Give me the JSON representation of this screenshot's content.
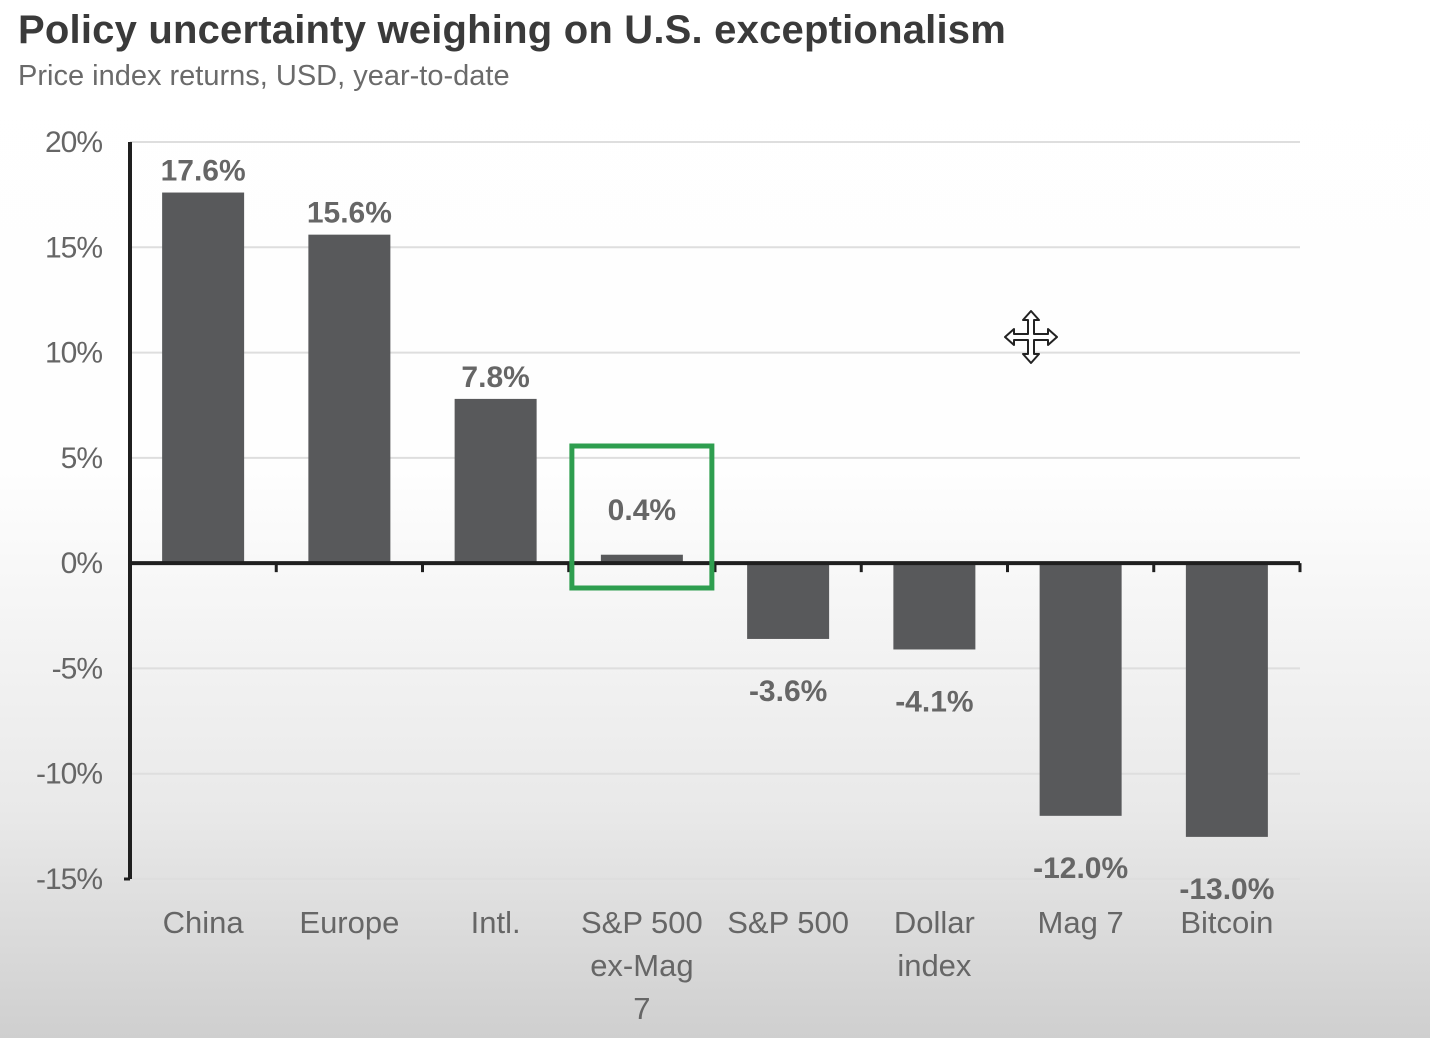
{
  "title": "Policy uncertainty weighing on U.S. exceptionalism",
  "subtitle": "Price index returns, USD, year-to-date",
  "cursor_icon": "move-cursor-icon",
  "colors": {
    "bar": "#58595b",
    "highlight_box": "#2e9e4f",
    "grid": "#dedede",
    "axis": "#1f1f1f",
    "label": "#666666"
  },
  "chart_data": {
    "type": "bar",
    "title": "Policy uncertainty weighing on U.S. exceptionalism",
    "subtitle": "Price index returns, USD, year-to-date",
    "xlabel": "",
    "ylabel": "",
    "ylim": [
      -15,
      20
    ],
    "yticks": [
      20,
      15,
      10,
      5,
      0,
      -5,
      -10,
      -15
    ],
    "ytick_labels": [
      "20%",
      "15%",
      "10%",
      "5%",
      "0%",
      "-5%",
      "-10%",
      "-15%"
    ],
    "grid": true,
    "legend": "none",
    "categories": [
      [
        "China"
      ],
      [
        "Europe"
      ],
      [
        "Intl."
      ],
      [
        "S&P 500",
        "ex-Mag",
        "7"
      ],
      [
        "S&P 500"
      ],
      [
        "Dollar",
        "index"
      ],
      [
        "Mag 7"
      ],
      [
        "Bitcoin"
      ]
    ],
    "values": [
      17.6,
      15.6,
      7.8,
      0.4,
      -3.6,
      -4.1,
      -12.0,
      -13.0
    ],
    "data_labels": [
      "17.6%",
      "15.6%",
      "7.8%",
      "0.4%",
      "-3.6%",
      "-4.1%",
      "-12.0%",
      "-13.0%"
    ],
    "highlighted_category": "S&P 500 ex-Mag 7"
  }
}
